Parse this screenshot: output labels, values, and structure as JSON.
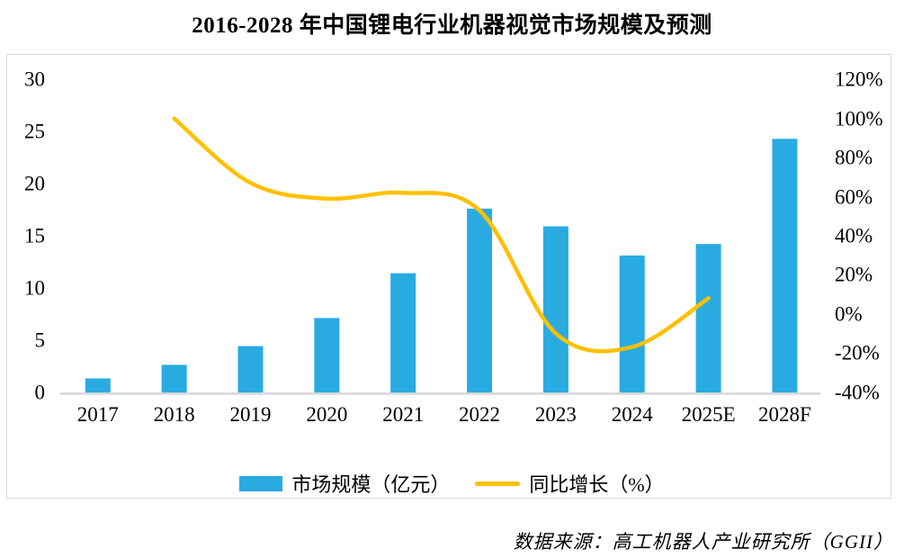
{
  "title": "2016-2028 年中国锂电行业机器视觉市场规模及预测",
  "source_note": "数据来源：高工机器人产业研究所（GGII）",
  "legend": {
    "bar_label": "市场规模（亿元）",
    "line_label": "同比增长（%）"
  },
  "colors": {
    "bar": "#29abe2",
    "line": "#ffc000",
    "axis_line": "#d9d9d9",
    "frame_border": "#d9d9d9",
    "text": "#000000"
  },
  "chart_data": {
    "type": "bar",
    "title": "2016-2028 年中国锂电行业机器视觉市场规模及预测",
    "categories": [
      "2017",
      "2018",
      "2019",
      "2020",
      "2021",
      "2022",
      "2023",
      "2024",
      "2025E",
      "2028F"
    ],
    "series": [
      {
        "name": "市场规模（亿元）",
        "type": "bar",
        "axis": "left",
        "values": [
          1.3,
          2.6,
          4.4,
          7.1,
          11.4,
          17.6,
          15.9,
          13.1,
          14.2,
          24.3
        ]
      },
      {
        "name": "同比增长（%）",
        "type": "line",
        "axis": "right",
        "categories": [
          "2018",
          "2019",
          "2020",
          "2021",
          "2022",
          "2023",
          "2024",
          "2025E"
        ],
        "values": [
          100,
          67,
          59,
          62,
          53,
          -10,
          -17,
          8
        ]
      }
    ],
    "left_axis": {
      "label": "",
      "range": [
        0,
        30
      ],
      "ticks": [
        0,
        5,
        10,
        15,
        20,
        25,
        30
      ]
    },
    "right_axis": {
      "label": "",
      "range": [
        -40,
        120
      ],
      "ticks": [
        120,
        100,
        80,
        60,
        40,
        20,
        0,
        -20,
        -40
      ],
      "tick_suffix": "%"
    },
    "grid": false,
    "legend_position": "bottom"
  }
}
